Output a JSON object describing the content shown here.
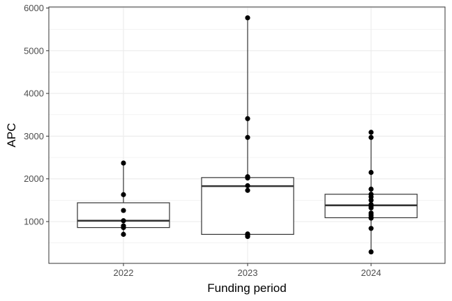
{
  "chart_data": {
    "type": "boxplot",
    "xlabel": "Funding period",
    "ylabel": "APC",
    "categories": [
      "2022",
      "2023",
      "2024"
    ],
    "ylim": [
      0,
      6000
    ],
    "yticks": [
      1000,
      2000,
      3000,
      4000,
      5000,
      6000
    ],
    "grid": true,
    "boxes": [
      {
        "category": "2022",
        "whisker_low": 700,
        "q1": 860,
        "median": 1020,
        "q3": 1440,
        "whisker_high": 2370,
        "points": [
          2370,
          1630,
          1260,
          1020,
          900,
          860,
          700
        ]
      },
      {
        "category": "2023",
        "whisker_low": 650,
        "q1": 700,
        "median": 1830,
        "q3": 2030,
        "whisker_high": 5770,
        "points": [
          5770,
          3410,
          2970,
          2050,
          2020,
          1840,
          1730,
          710,
          670,
          650
        ]
      },
      {
        "category": "2024",
        "whisker_low": 290,
        "q1": 1090,
        "median": 1380,
        "q3": 1640,
        "whisker_high": 3090,
        "points": [
          3090,
          2970,
          2150,
          1760,
          1640,
          1580,
          1500,
          1400,
          1360,
          1320,
          1200,
          1150,
          1100,
          1080,
          840,
          290
        ]
      }
    ],
    "colors": {
      "points": "#000000",
      "box": "#333333",
      "grid": "#ebebeb",
      "panel_border": "#333333"
    }
  }
}
